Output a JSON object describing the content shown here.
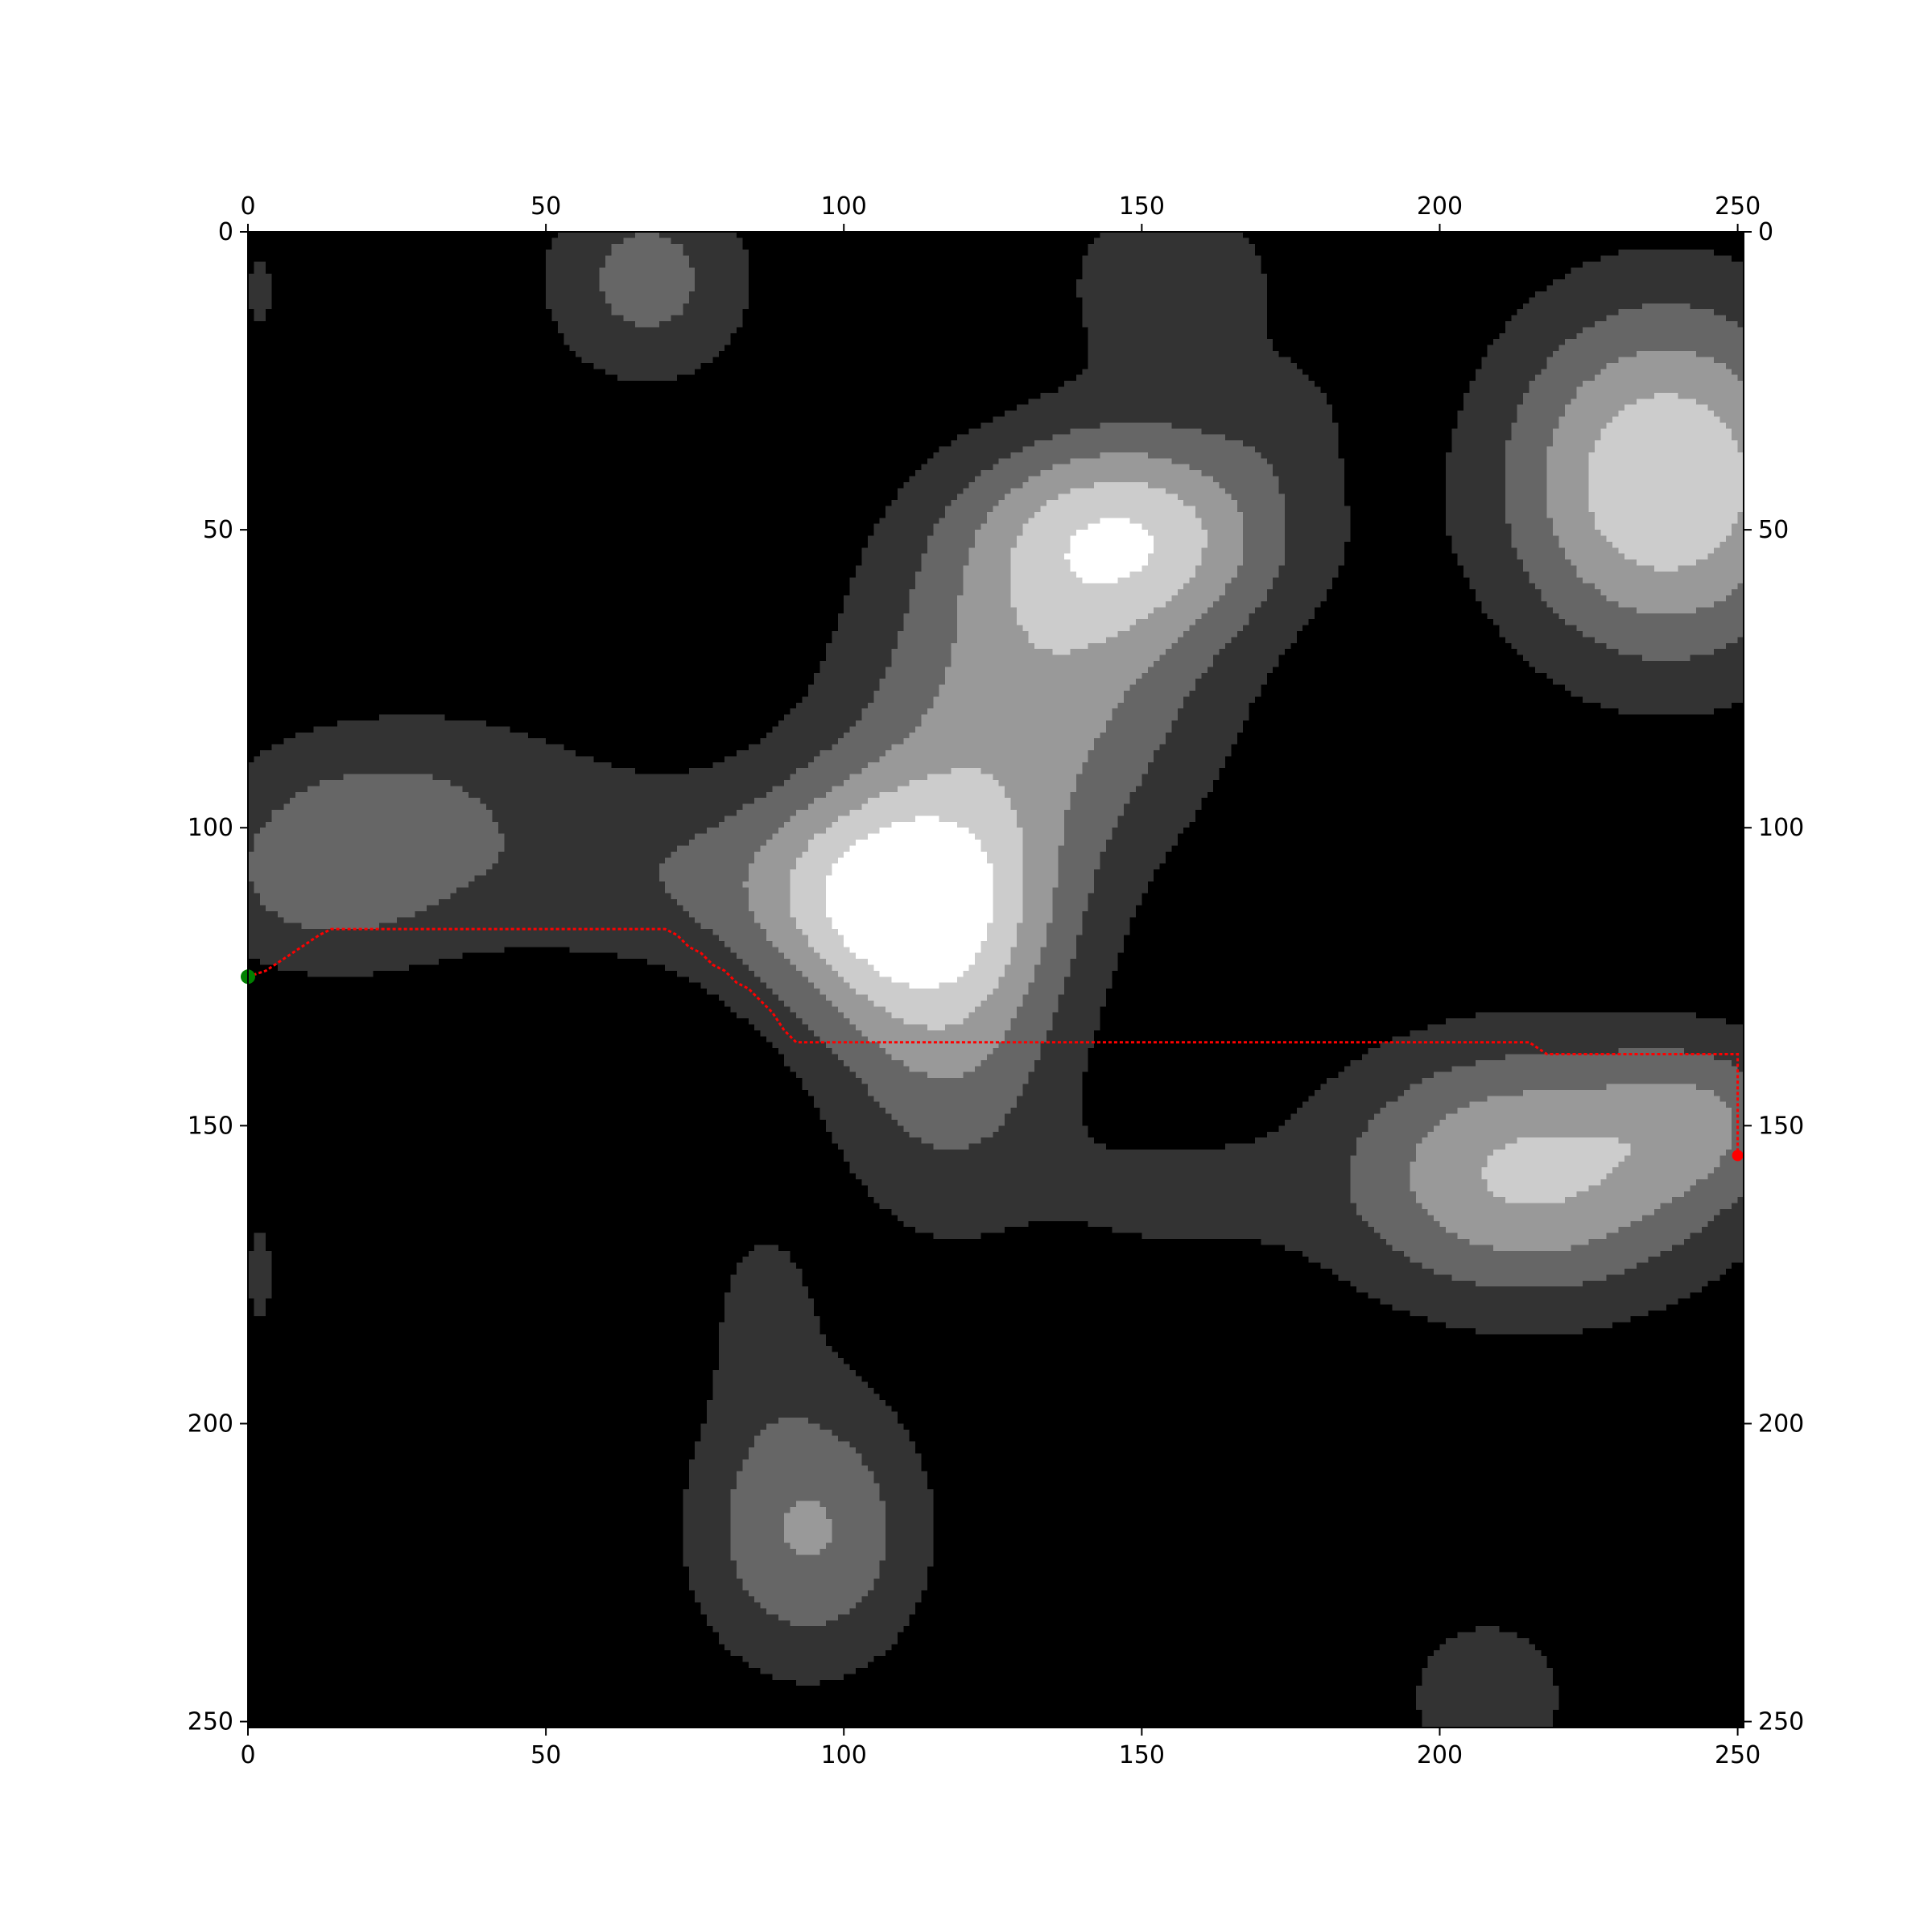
{
  "chart_data": {
    "type": "heatmap",
    "title": "",
    "xlabel": "",
    "ylabel": "",
    "xlim": [
      0,
      251
    ],
    "ylim": [
      251,
      0
    ],
    "x_ticks": [
      "0",
      "50",
      "100",
      "150",
      "200",
      "250"
    ],
    "y_ticks": [
      "0",
      "50",
      "100",
      "150",
      "200",
      "250"
    ],
    "x_tick_values": [
      0,
      50,
      100,
      150,
      200,
      250
    ],
    "y_tick_values": [
      0,
      50,
      100,
      150,
      200,
      250
    ],
    "ticks_on_all_sides": true,
    "colormap": "gray",
    "levels": [
      {
        "level": 0,
        "color": "#000000"
      },
      {
        "level": 1,
        "color": "#333333"
      },
      {
        "level": 2,
        "color": "#666666"
      },
      {
        "level": 3,
        "color": "#999999"
      },
      {
        "level": 4,
        "color": "#cccccc"
      },
      {
        "level": 5,
        "color": "#ffffff"
      }
    ],
    "bumps": [
      {
        "x": 148,
        "y": 50,
        "sx": 20,
        "sy": 13,
        "amp": 4.2
      },
      {
        "x": 132,
        "y": 78,
        "sx": 22,
        "sy": 20,
        "amp": 3.2
      },
      {
        "x": 108,
        "y": 112,
        "sx": 18,
        "sy": 15,
        "amp": 4.2
      },
      {
        "x": 118,
        "y": 135,
        "sx": 15,
        "sy": 24,
        "amp": 2.6
      },
      {
        "x": 238,
        "y": 42,
        "sx": 20,
        "sy": 22,
        "amp": 5.0
      },
      {
        "x": 215,
        "y": 158,
        "sx": 24,
        "sy": 16,
        "amp": 4.2
      },
      {
        "x": 245,
        "y": 148,
        "sx": 12,
        "sy": 10,
        "amp": 1.8
      },
      {
        "x": 94,
        "y": 218,
        "sx": 14,
        "sy": 17,
        "amp": 3.1
      },
      {
        "x": 67,
        "y": 8,
        "sx": 13,
        "sy": 13,
        "amp": 2.4
      },
      {
        "x": 12,
        "y": 108,
        "sx": 16,
        "sy": 12,
        "amp": 2.2
      },
      {
        "x": 60,
        "y": 108,
        "sx": 30,
        "sy": 12,
        "amp": 1.6
      },
      {
        "x": 30,
        "y": 90,
        "sx": 22,
        "sy": 10,
        "amp": 1.2
      },
      {
        "x": 155,
        "y": 8,
        "sx": 14,
        "sy": 12,
        "amp": 1.8
      },
      {
        "x": 155,
        "y": 162,
        "sx": 14,
        "sy": 8,
        "amp": 1.2
      },
      {
        "x": 175,
        "y": 30,
        "sx": 8,
        "sy": 8,
        "amp": 0.8
      },
      {
        "x": 208,
        "y": 246,
        "sx": 12,
        "sy": 12,
        "amp": 1.6
      },
      {
        "x": 2,
        "y": 10,
        "sx": 3,
        "sy": 8,
        "amp": 1.2
      },
      {
        "x": 2,
        "y": 175,
        "sx": 3,
        "sy": 12,
        "amp": 1.2
      },
      {
        "x": 13,
        "y": 252,
        "sx": 5,
        "sy": 3,
        "amp": 1.1
      },
      {
        "x": 173,
        "y": 252,
        "sx": 5,
        "sy": 3,
        "amp": 1.1
      },
      {
        "x": 86,
        "y": 180,
        "sx": 8,
        "sy": 14,
        "amp": 1.1
      }
    ],
    "path": {
      "color": "#ff0000",
      "points": [
        [
          0,
          125
        ],
        [
          3,
          124
        ],
        [
          6,
          122
        ],
        [
          9,
          120
        ],
        [
          12,
          118
        ],
        [
          14,
          117
        ],
        [
          20,
          117
        ],
        [
          30,
          117
        ],
        [
          40,
          117
        ],
        [
          50,
          117
        ],
        [
          60,
          117
        ],
        [
          70,
          117
        ],
        [
          72,
          118
        ],
        [
          74,
          120
        ],
        [
          76,
          121
        ],
        [
          78,
          123
        ],
        [
          80,
          124
        ],
        [
          82,
          126
        ],
        [
          84,
          127
        ],
        [
          86,
          129
        ],
        [
          88,
          131
        ],
        [
          90,
          134
        ],
        [
          92,
          136
        ],
        [
          100,
          136
        ],
        [
          120,
          136
        ],
        [
          140,
          136
        ],
        [
          160,
          136
        ],
        [
          180,
          136
        ],
        [
          200,
          136
        ],
        [
          215,
          136
        ],
        [
          218,
          138
        ],
        [
          230,
          138
        ],
        [
          250,
          138
        ],
        [
          250,
          145
        ],
        [
          250,
          150
        ],
        [
          250,
          155
        ]
      ]
    },
    "start_point": {
      "x": 0,
      "y": 125,
      "color": "#008000"
    },
    "end_point": {
      "x": 250,
      "y": 155,
      "color": "#ff0000"
    }
  }
}
